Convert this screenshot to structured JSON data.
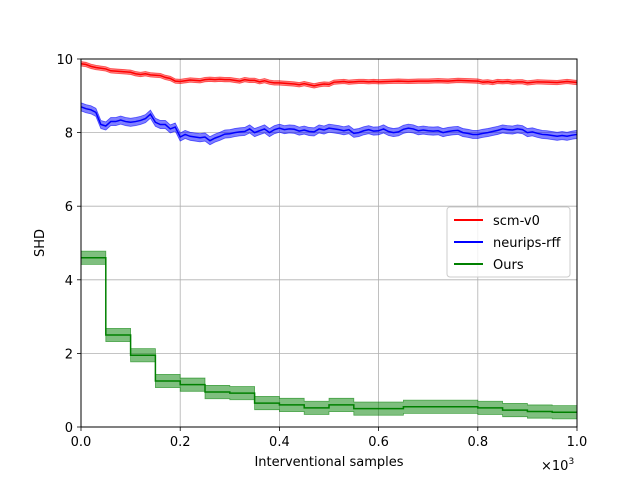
{
  "chart_data": {
    "type": "line",
    "xlabel": "Interventional samples",
    "ylabel": "SHD",
    "x_multiplier": "×10",
    "x_multiplier_exp": "3",
    "xlim": [
      0.0,
      1.0
    ],
    "ylim": [
      0,
      10
    ],
    "xticks": [
      "0.0",
      "0.2",
      "0.4",
      "0.6",
      "0.8",
      "1.0"
    ],
    "yticks": [
      "0",
      "2",
      "4",
      "6",
      "8",
      "10"
    ],
    "grid": true,
    "legend_position": "center-right",
    "series": [
      {
        "name": "scm-v0",
        "color": "#ff0000",
        "band": 0.06,
        "x": [
          0.0,
          0.01,
          0.02,
          0.03,
          0.04,
          0.05,
          0.06,
          0.07,
          0.08,
          0.09,
          0.1,
          0.11,
          0.12,
          0.13,
          0.14,
          0.15,
          0.16,
          0.17,
          0.18,
          0.19,
          0.2,
          0.21,
          0.22,
          0.23,
          0.24,
          0.25,
          0.26,
          0.27,
          0.28,
          0.29,
          0.3,
          0.31,
          0.32,
          0.33,
          0.34,
          0.35,
          0.36,
          0.37,
          0.38,
          0.39,
          0.4,
          0.41,
          0.42,
          0.43,
          0.44,
          0.45,
          0.46,
          0.47,
          0.48,
          0.49,
          0.5,
          0.51,
          0.52,
          0.53,
          0.54,
          0.55,
          0.56,
          0.57,
          0.58,
          0.59,
          0.6,
          0.62,
          0.64,
          0.66,
          0.68,
          0.7,
          0.72,
          0.74,
          0.76,
          0.78,
          0.8,
          0.81,
          0.82,
          0.83,
          0.84,
          0.85,
          0.86,
          0.87,
          0.88,
          0.89,
          0.9,
          0.92,
          0.94,
          0.96,
          0.98,
          1.0
        ],
        "values": [
          9.87,
          9.85,
          9.8,
          9.77,
          9.75,
          9.73,
          9.68,
          9.67,
          9.66,
          9.65,
          9.64,
          9.6,
          9.58,
          9.6,
          9.57,
          9.56,
          9.55,
          9.5,
          9.47,
          9.4,
          9.39,
          9.41,
          9.43,
          9.42,
          9.41,
          9.44,
          9.45,
          9.44,
          9.45,
          9.44,
          9.44,
          9.42,
          9.4,
          9.44,
          9.42,
          9.42,
          9.38,
          9.41,
          9.37,
          9.35,
          9.35,
          9.34,
          9.33,
          9.32,
          9.3,
          9.33,
          9.3,
          9.27,
          9.3,
          9.32,
          9.31,
          9.37,
          9.38,
          9.39,
          9.37,
          9.38,
          9.39,
          9.39,
          9.38,
          9.39,
          9.38,
          9.39,
          9.4,
          9.39,
          9.4,
          9.4,
          9.41,
          9.4,
          9.42,
          9.41,
          9.4,
          9.37,
          9.38,
          9.36,
          9.39,
          9.38,
          9.39,
          9.37,
          9.38,
          9.38,
          9.35,
          9.38,
          9.37,
          9.36,
          9.39,
          9.36
        ]
      },
      {
        "name": "neurips-rff",
        "color": "#0000ff",
        "band": 0.11,
        "x": [
          0.0,
          0.01,
          0.02,
          0.03,
          0.04,
          0.05,
          0.06,
          0.07,
          0.08,
          0.09,
          0.1,
          0.11,
          0.12,
          0.13,
          0.14,
          0.15,
          0.16,
          0.17,
          0.18,
          0.19,
          0.2,
          0.21,
          0.22,
          0.23,
          0.24,
          0.25,
          0.26,
          0.27,
          0.28,
          0.29,
          0.3,
          0.31,
          0.32,
          0.33,
          0.34,
          0.35,
          0.36,
          0.37,
          0.38,
          0.39,
          0.4,
          0.41,
          0.42,
          0.43,
          0.44,
          0.45,
          0.46,
          0.47,
          0.48,
          0.49,
          0.5,
          0.51,
          0.52,
          0.53,
          0.54,
          0.55,
          0.56,
          0.57,
          0.58,
          0.59,
          0.6,
          0.61,
          0.62,
          0.63,
          0.64,
          0.65,
          0.66,
          0.67,
          0.68,
          0.69,
          0.7,
          0.71,
          0.72,
          0.73,
          0.74,
          0.75,
          0.76,
          0.77,
          0.78,
          0.79,
          0.8,
          0.81,
          0.82,
          0.83,
          0.84,
          0.85,
          0.86,
          0.87,
          0.88,
          0.89,
          0.9,
          0.91,
          0.92,
          0.93,
          0.94,
          0.95,
          0.96,
          0.97,
          0.98,
          0.99,
          1.0
        ],
        "values": [
          8.7,
          8.65,
          8.62,
          8.55,
          8.22,
          8.18,
          8.3,
          8.3,
          8.34,
          8.3,
          8.28,
          8.3,
          8.33,
          8.38,
          8.5,
          8.28,
          8.22,
          8.22,
          8.1,
          8.15,
          7.88,
          7.95,
          7.9,
          7.88,
          7.86,
          7.88,
          7.78,
          7.85,
          7.9,
          7.96,
          7.97,
          8.0,
          8.02,
          8.03,
          8.1,
          8.0,
          8.05,
          8.1,
          8.0,
          8.08,
          8.12,
          8.08,
          8.1,
          8.09,
          8.04,
          8.07,
          8.03,
          8.02,
          8.1,
          8.07,
          8.12,
          8.1,
          8.08,
          8.05,
          8.08,
          7.98,
          8.0,
          8.05,
          8.08,
          8.04,
          8.05,
          8.1,
          8.03,
          8.0,
          8.02,
          8.09,
          8.12,
          8.1,
          8.05,
          8.07,
          8.05,
          8.04,
          8.05,
          8.0,
          8.03,
          8.05,
          8.06,
          8.0,
          7.98,
          7.95,
          7.95,
          7.98,
          8.0,
          8.03,
          8.06,
          8.1,
          8.08,
          8.07,
          8.1,
          8.08,
          8.0,
          8.02,
          7.98,
          7.95,
          7.94,
          7.92,
          7.9,
          7.92,
          7.9,
          7.93,
          7.95
        ]
      },
      {
        "name": "Ours",
        "color": "#008000",
        "band": 0.18,
        "step": true,
        "x": [
          0.0,
          0.05,
          0.1,
          0.15,
          0.2,
          0.25,
          0.3,
          0.35,
          0.4,
          0.45,
          0.5,
          0.55,
          0.6,
          0.65,
          0.7,
          0.75,
          0.8,
          0.85,
          0.9,
          0.95,
          1.0
        ],
        "values": [
          4.6,
          2.5,
          1.95,
          1.25,
          1.15,
          0.95,
          0.92,
          0.65,
          0.6,
          0.52,
          0.6,
          0.5,
          0.5,
          0.55,
          0.55,
          0.55,
          0.52,
          0.46,
          0.42,
          0.4,
          0.4
        ]
      }
    ]
  }
}
